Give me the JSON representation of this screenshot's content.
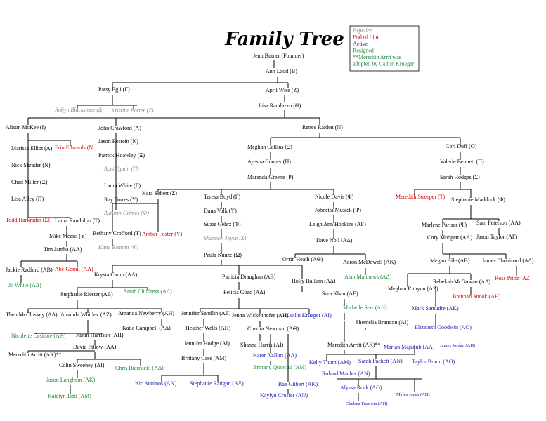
{
  "header": {
    "title": "Family Tree"
  },
  "legend": [
    {
      "label": "Expelled",
      "color": "#8a8a8a"
    },
    {
      "label": "End of Line",
      "color": "#d40000"
    },
    {
      "label": "Active",
      "color": "#1c1caa"
    },
    {
      "label": "Resigned",
      "color": "#1a8a3a"
    },
    {
      "label": "**Meredith Arrit was",
      "color": "#1a8a3a"
    },
    {
      "label": "adopted by Caitlin Krueger",
      "color": "#1a8a3a"
    }
  ],
  "nodes": [
    {
      "label": "Jenn Butner (Founder)",
      "color": "#000000"
    },
    {
      "label": "Ann Ladd (B)",
      "color": "#000000"
    },
    {
      "label": "Patsy Egli (Γ)",
      "color": "#000000"
    },
    {
      "label": "April Wise (Z)",
      "color": "#000000"
    },
    {
      "label": "Robyn Blackstone (Δ)",
      "color": "#8a8a8a"
    },
    {
      "label": "Kristine Porter (Z)",
      "color": "#8a8a8a"
    },
    {
      "label": "Lisa Randazzo (Θ)",
      "color": "#000000"
    },
    {
      "label": "Alison McKee (I)",
      "color": "#000000"
    },
    {
      "label": "John Crawford (Λ)",
      "color": "#000000"
    },
    {
      "label": "Renee Raiden (N)",
      "color": "#000000"
    },
    {
      "label": "Jason Restein (N)",
      "color": "#000000"
    },
    {
      "label": "Marissa Elliot (Λ)",
      "color": "#000000"
    },
    {
      "label": "Erin Edwards (N",
      "color": "#d40000"
    },
    {
      "label": "Patrick Hoawley (Ξ)",
      "color": "#000000"
    },
    {
      "label": "Meghan Collins (Ξ)",
      "color": "#000000"
    },
    {
      "label": "Cori Duff (O)",
      "color": "#000000"
    },
    {
      "label": "April Spain (Π)",
      "color": "#8a8a8a"
    },
    {
      "label": "Nick Shrader (N)",
      "color": "#000000"
    },
    {
      "label": "Ayesha Cooper (Π)",
      "color": "#000000"
    },
    {
      "label": "Valerie Bennett (Π)",
      "color": "#000000"
    },
    {
      "label": "Chad Miller (Ξ)",
      "color": "#000000"
    },
    {
      "label": "Laura White (Γ)",
      "color": "#000000"
    },
    {
      "label": "Maranda Greene (P)",
      "color": "#000000"
    },
    {
      "label": "Sarah Hodges (Σ)",
      "color": "#000000"
    },
    {
      "label": "Kara Sebert (Σ)",
      "color": "#000000"
    },
    {
      "label": "Ray Torres (Y)",
      "color": "#000000"
    },
    {
      "label": "Lisa Alley (Π)",
      "color": "#000000"
    },
    {
      "label": "Teresa Boyd (Γ)",
      "color": "#000000"
    },
    {
      "label": "Nicole Davis (Φ)",
      "color": "#000000"
    },
    {
      "label": "Meredith Streeper (T)",
      "color": "#d40000"
    },
    {
      "label": "Stephanie Maddock (Φ)",
      "color": "#000000"
    },
    {
      "label": "Autumn Grimes (Φ)",
      "color": "#8a8a8a"
    },
    {
      "label": "Dana Volk (Y)",
      "color": "#000000"
    },
    {
      "label": "Johnetta Musick (Ψ)",
      "color": "#000000"
    },
    {
      "label": "Todd Harkrader (Σ)",
      "color": "#d40000"
    },
    {
      "label": "Laura Randolph (T)",
      "color": "#000000"
    },
    {
      "label": "Suzie Gehrz (Φ)",
      "color": "#000000"
    },
    {
      "label": "Leigh Ann Hopkins (AΓ)",
      "color": "#000000"
    },
    {
      "label": "Marlene Pariser (Ψ)",
      "color": "#000000"
    },
    {
      "label": "Sam Peterson (AA)",
      "color": "#000000"
    },
    {
      "label": "Bethany Crofford (T)",
      "color": "#000000"
    },
    {
      "label": "Amber Foster (Y)",
      "color": "#d40000"
    },
    {
      "label": "Mike Means (Y)",
      "color": "#000000"
    },
    {
      "label": "Shannon Joyce (X)",
      "color": "#8a8a8a"
    },
    {
      "label": "Dave Noll (AΔ)",
      "color": "#000000"
    },
    {
      "label": "Cory Mudgett (AA)",
      "color": "#000000"
    },
    {
      "label": "Jason Taylor (AΓ)",
      "color": "#000000"
    },
    {
      "label": "Katie Bennett (Φ)",
      "color": "#8a8a8a"
    },
    {
      "label": "Tim Jamba (AA)",
      "color": "#000000"
    },
    {
      "label": "Paula Kunze (Ω)",
      "color": "#000000"
    },
    {
      "label": "Orrin Heath (AΘ)",
      "color": "#000000"
    },
    {
      "label": "Aaron McDowell (AK)",
      "color": "#000000"
    },
    {
      "label": "Megan Hile (AB)",
      "color": "#000000"
    },
    {
      "label": "James Chouinard (AΔ)",
      "color": "#000000"
    },
    {
      "label": "Jackie Radford (AB)",
      "color": "#000000"
    },
    {
      "label": "Abe Gomil (AA)",
      "color": "#d40000"
    },
    {
      "label": "Krysta Camp (AA)",
      "color": "#000000"
    },
    {
      "label": "Patricia Draughan (AB)",
      "color": "#000000"
    },
    {
      "label": "Alan Matthews (AΔ)",
      "color": "#1a8a3a"
    },
    {
      "label": "Holly Hallum (AΔ)",
      "color": "#000000"
    },
    {
      "label": "Rebekah McGowan (AΔ)",
      "color": "#000000"
    },
    {
      "label": "Ross Prinz (AZ)",
      "color": "#d40000"
    },
    {
      "label": "Meghan Runyon (AZ)",
      "color": "#000000"
    },
    {
      "label": "Jo White (AΔ)",
      "color": "#1a8a3a"
    },
    {
      "label": "Stephanie Riester (AB)",
      "color": "#000000"
    },
    {
      "label": "Sarah Childress (AΔ)",
      "color": "#1a8a3a"
    },
    {
      "label": "Felicia Goad (AΔ)",
      "color": "#000000"
    },
    {
      "label": "Sara Khan (AE)",
      "color": "#000000"
    },
    {
      "label": "Brennan Snook (AH)",
      "color": "#d40000"
    },
    {
      "label": "Michelle Serr (AH)",
      "color": "#1a8a3a"
    },
    {
      "label": "Mark Samudre (AK)",
      "color": "#1c1caa"
    },
    {
      "label": "Theo McCloskey (AΔ)",
      "color": "#000000"
    },
    {
      "label": "Amanda Whitlev (AZ)",
      "color": "#000000"
    },
    {
      "label": "Amanda Newberry (AH)",
      "color": "#000000"
    },
    {
      "label": "Jennifer Sandlin (AE)",
      "color": "#000000"
    },
    {
      "label": "Jenna Wickenhofer (AH)",
      "color": "#000000"
    },
    {
      "label": "Caitlin Krueger (AI)",
      "color": "#1c1caa"
    },
    {
      "label": "Shemelia Brandon (AI)",
      "color": "#000000"
    },
    {
      "label": "Katie Campbell (AΔ)",
      "color": "#000000"
    },
    {
      "label": "Heather Wells (AH)",
      "color": "#000000"
    },
    {
      "label": "Cherita Newman (AΘ)",
      "color": "#000000"
    },
    {
      "label": "Elizabeth Goodwin (AO)",
      "color": "#1c1caa"
    },
    {
      "label": "Nicolette Cositore (AΘ)",
      "color": "#1a8a3a"
    },
    {
      "label": "Justin Harrison (AH)",
      "color": "#000000"
    },
    {
      "label": "David Pillow (AΛ)",
      "color": "#000000"
    },
    {
      "label": "Jennifer Hodge (AI)",
      "color": "#000000"
    },
    {
      "label": "Shanna Harris (AI)",
      "color": "#000000"
    },
    {
      "label": "Meredith Arritt (AK)**",
      "color": "#000000"
    },
    {
      "label": "Marian Majzoub (AΛ)",
      "color": "#1c1caa"
    },
    {
      "label": "James Jordan (AΠ)",
      "color": "#1c1caa"
    },
    {
      "label": "Meredith Arritt (AK)**",
      "color": "#000000"
    },
    {
      "label": "Karen Valluri (AΛ)",
      "color": "#1c1caa"
    },
    {
      "label": "Brittany Case (AM)",
      "color": "#000000"
    },
    {
      "label": "Kelly Thom (AM)",
      "color": "#1c1caa"
    },
    {
      "label": "Sarah Packett (AN)",
      "color": "#1c1caa"
    },
    {
      "label": "Taylor Braun (AO)",
      "color": "#1c1caa"
    },
    {
      "label": "Colin Sweeney (AI)",
      "color": "#000000"
    },
    {
      "label": "Chris Biernacki (AΔ)",
      "color": "#1a8a3a"
    },
    {
      "label": "Brittany Quiocho (AM)",
      "color": "#1a8a3a"
    },
    {
      "label": "Roland Macher (AN)",
      "color": "#1c1caa"
    },
    {
      "label": "Jason Langhom (AK)",
      "color": "#1a8a3a"
    },
    {
      "label": "Nic Anninos (AN)",
      "color": "#1c1caa"
    },
    {
      "label": "Stephanie Ratigan (AΞ)",
      "color": "#1c1caa"
    },
    {
      "label": "Rae Gilbert (AK)",
      "color": "#1c1caa"
    },
    {
      "label": "Alyssa Rock (AO)",
      "color": "#1c1caa"
    },
    {
      "label": "Kaylyn Crosier (AN)",
      "color": "#1c1caa"
    },
    {
      "label": "Myles Jones (AΠ)",
      "color": "#1c1caa"
    },
    {
      "label": "Katelyn Tatti (AM)",
      "color": "#1a8a3a"
    },
    {
      "label": "Chelsea Frascoia (AΠ)",
      "color": "#1c1caa"
    }
  ]
}
